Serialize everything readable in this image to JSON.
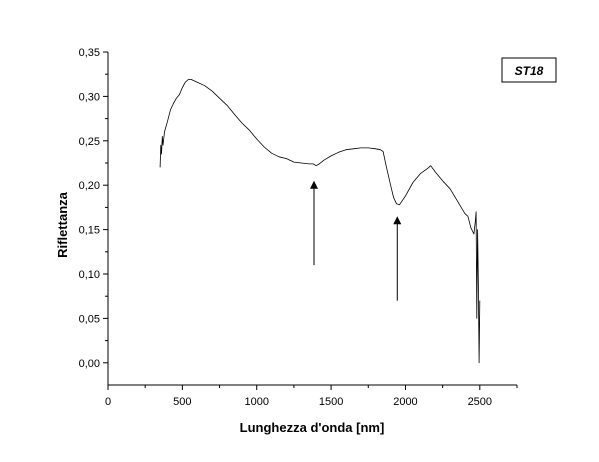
{
  "chart_data": {
    "type": "line",
    "title": "",
    "sample_label": "ST18",
    "xlabel": "Lunghezza d'onda [nm]",
    "ylabel": "Riflettanza",
    "xlim": [
      0,
      2750
    ],
    "ylim": [
      -0.025,
      0.35
    ],
    "x_ticks": [
      0,
      500,
      1000,
      1500,
      2000,
      2500
    ],
    "x_tick_labels": [
      "0",
      "500",
      "1000",
      "1500",
      "2000",
      "2500"
    ],
    "y_ticks": [
      0.0,
      0.05,
      0.1,
      0.15,
      0.2,
      0.25,
      0.3,
      0.35
    ],
    "y_tick_labels": [
      "0,00",
      "0,05",
      "0,10",
      "0,15",
      "0,20",
      "0,25",
      "0,30",
      "0,35"
    ],
    "grid": false,
    "series": [
      {
        "x": [
          350,
          355,
          360,
          365,
          370,
          380,
          400,
          420,
          440,
          460,
          480,
          500,
          520,
          540,
          560,
          600,
          650,
          700,
          750,
          800,
          850,
          900,
          950,
          1000,
          1050,
          1100,
          1150,
          1200,
          1250,
          1300,
          1350,
          1380,
          1400,
          1420,
          1450,
          1500,
          1550,
          1600,
          1650,
          1700,
          1750,
          1800,
          1830,
          1850,
          1870,
          1900,
          1920,
          1940,
          1960,
          2000,
          2050,
          2100,
          2150,
          2170,
          2200,
          2250,
          2300,
          2350,
          2400,
          2420,
          2440,
          2460,
          2470,
          2475,
          2480,
          2485,
          2490,
          2495,
          2500
        ],
        "values": [
          0.22,
          0.245,
          0.235,
          0.255,
          0.245,
          0.26,
          0.272,
          0.285,
          0.292,
          0.298,
          0.302,
          0.31,
          0.316,
          0.319,
          0.319,
          0.316,
          0.312,
          0.306,
          0.298,
          0.29,
          0.28,
          0.27,
          0.262,
          0.252,
          0.243,
          0.236,
          0.232,
          0.23,
          0.226,
          0.225,
          0.224,
          0.224,
          0.222,
          0.224,
          0.228,
          0.233,
          0.237,
          0.24,
          0.241,
          0.242,
          0.242,
          0.241,
          0.24,
          0.238,
          0.222,
          0.2,
          0.186,
          0.179,
          0.178,
          0.188,
          0.203,
          0.213,
          0.219,
          0.222,
          0.215,
          0.205,
          0.196,
          0.182,
          0.168,
          0.165,
          0.152,
          0.145,
          0.16,
          0.17,
          0.05,
          0.15,
          0.095,
          0.0,
          0.07
        ]
      }
    ],
    "annotations": [
      {
        "type": "arrow",
        "from": [
          1385,
          0.11
        ],
        "to": [
          1385,
          0.205
        ]
      },
      {
        "type": "arrow",
        "from": [
          1945,
          0.07
        ],
        "to": [
          1945,
          0.165
        ]
      }
    ]
  }
}
